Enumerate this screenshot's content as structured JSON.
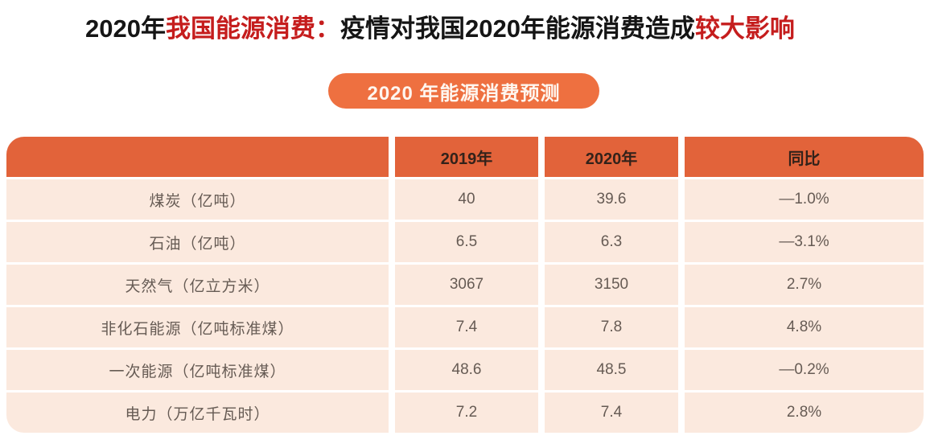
{
  "title": {
    "part1_black": "2020年",
    "part2_red": "我国能源消费：",
    "part3_black": "疫情对我国2020年能源消费造成",
    "part4_red": "较大影响"
  },
  "badge": {
    "label": "2020 年能源消费预测"
  },
  "table": {
    "columns": [
      "",
      "2019年",
      "2020年",
      "同比"
    ],
    "rows": [
      {
        "label": "煤炭（亿吨）",
        "v2019": "40",
        "v2020": "39.6",
        "yoy": "—1.0%"
      },
      {
        "label": "石油（亿吨）",
        "v2019": "6.5",
        "v2020": "6.3",
        "yoy": "—3.1%"
      },
      {
        "label": "天然气（亿立方米）",
        "v2019": "3067",
        "v2020": "3150",
        "yoy": "2.7%"
      },
      {
        "label": "非化石能源（亿吨标准煤）",
        "v2019": "7.4",
        "v2020": "7.8",
        "yoy": "4.8%"
      },
      {
        "label": "一次能源（亿吨标准煤）",
        "v2019": "48.6",
        "v2020": "48.5",
        "yoy": "—0.2%"
      },
      {
        "label": "电力（万亿千瓦时）",
        "v2019": "7.2",
        "v2020": "7.4",
        "yoy": "2.8%"
      }
    ]
  },
  "colors": {
    "header_orange": "#e2633a",
    "badge_orange": "#ee7040",
    "row_peach": "#fbe9de",
    "title_red": "#c51d1d",
    "title_black": "#151515",
    "header_text": "#33221a",
    "body_text": "#665b54",
    "badge_text": "#fef6ef"
  },
  "chart_data": {
    "type": "table",
    "title": "2020 年能源消费预测",
    "page_title": "2020年我国能源消费：疫情对我国2020年能源消费造成较大影响",
    "columns": [
      "",
      "2019年",
      "2020年",
      "同比"
    ],
    "rows": [
      [
        "煤炭（亿吨）",
        40,
        39.6,
        "-1.0%"
      ],
      [
        "石油（亿吨）",
        6.5,
        6.3,
        "-3.1%"
      ],
      [
        "天然气（亿立方米）",
        3067,
        3150,
        "2.7%"
      ],
      [
        "非化石能源（亿吨标准煤）",
        7.4,
        7.8,
        "4.8%"
      ],
      [
        "一次能源（亿吨标准煤）",
        48.6,
        48.5,
        "-0.2%"
      ],
      [
        "电力（万亿千瓦时）",
        7.2,
        7.4,
        "2.8%"
      ]
    ]
  }
}
